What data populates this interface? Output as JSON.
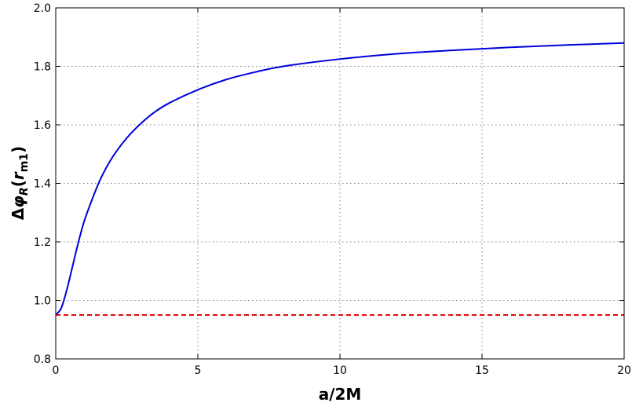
{
  "chart_data": {
    "type": "line",
    "xlabel": "a/2M",
    "ylabel": {
      "prefix": "Δ",
      "phi": "φ",
      "phi_sub": "R",
      "open": "(",
      "r": "r",
      "r_sub": "m1",
      "close": ")"
    },
    "xlim": [
      0,
      20
    ],
    "ylim": [
      0.8,
      2.0
    ],
    "x_ticks": [
      0,
      5,
      10,
      15,
      20
    ],
    "y_ticks": [
      0.8,
      1.0,
      1.2,
      1.4,
      1.6,
      1.8,
      2.0
    ],
    "x_tick_labels": [
      "0",
      "5",
      "10",
      "15",
      "20"
    ],
    "y_tick_labels": [
      "0.8",
      "1.0",
      "1.2",
      "1.4",
      "1.6",
      "1.8",
      "2.0"
    ],
    "grid": true,
    "series": [
      {
        "style": "solid",
        "color": "#0000dd",
        "x": [
          0.0,
          0.2,
          0.4,
          0.6,
          0.8,
          1.0,
          1.3,
          1.6,
          2.0,
          2.5,
          3.0,
          3.5,
          4.0,
          5.0,
          6.0,
          7.0,
          8.0,
          10.0,
          12.0,
          14.0,
          16.0,
          18.0,
          20.0
        ],
        "y": [
          0.95,
          0.975,
          1.04,
          1.12,
          1.2,
          1.27,
          1.35,
          1.42,
          1.49,
          1.555,
          1.605,
          1.645,
          1.675,
          1.72,
          1.755,
          1.78,
          1.8,
          1.825,
          1.843,
          1.855,
          1.865,
          1.873,
          1.88
        ]
      },
      {
        "style": "dashed",
        "color": "#e00000",
        "x": [
          0,
          20
        ],
        "y": [
          0.95,
          0.95
        ]
      }
    ]
  }
}
